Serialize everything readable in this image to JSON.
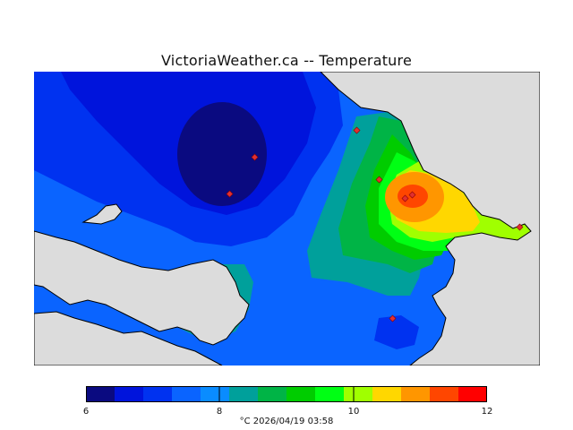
{
  "title": "VictoriaWeather.ca -- Temperature",
  "legend": {
    "min": 6,
    "max": 12,
    "ticks": [
      "6",
      "8",
      "10",
      "12"
    ],
    "colors": [
      "#0a0a80",
      "#0014dc",
      "#0032f0",
      "#0a64ff",
      "#0a8cff",
      "#00a09b",
      "#00b446",
      "#00cc00",
      "#00ff14",
      "#a0ff00",
      "#ffd700",
      "#ff9600",
      "#ff4600",
      "#ff0000"
    ]
  },
  "caption": "°C  2026/04/19 03:58",
  "colors": {
    "land_background": "#dcdcdc",
    "coast": "#000000",
    "station_marker": "#ff0000"
  }
}
